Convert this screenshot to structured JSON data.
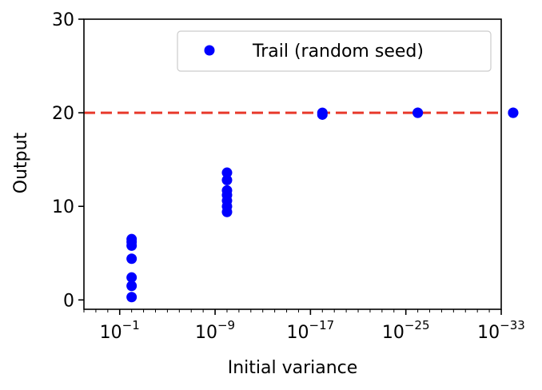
{
  "chart_data": {
    "type": "scatter",
    "xlabel": "Initial variance",
    "ylabel": "Output",
    "x_scale": "log",
    "xlim": [
      100.0,
      1e-33
    ],
    "ylim": [
      -1,
      30
    ],
    "x_ticks": [
      {
        "value": 0.1,
        "base": "10",
        "exp": "−1"
      },
      {
        "value": 1e-09,
        "base": "10",
        "exp": "−9"
      },
      {
        "value": 1e-17,
        "base": "10",
        "exp": "−17"
      },
      {
        "value": 1e-25,
        "base": "10",
        "exp": "−25"
      },
      {
        "value": 1e-33,
        "base": "10",
        "exp": "−33"
      }
    ],
    "y_ticks": [
      0,
      10,
      20,
      30
    ],
    "grid": false,
    "legend_position": "top-right",
    "series": [
      {
        "name": "Trail (random seed)",
        "color": "#0000ff",
        "marker": "circle",
        "points": [
          {
            "x": 0.01,
            "y": 0.3
          },
          {
            "x": 0.01,
            "y": 1.5
          },
          {
            "x": 0.01,
            "y": 2.4
          },
          {
            "x": 0.01,
            "y": 4.4
          },
          {
            "x": 0.01,
            "y": 5.8
          },
          {
            "x": 0.01,
            "y": 6.2
          },
          {
            "x": 0.01,
            "y": 6.5
          },
          {
            "x": 1e-10,
            "y": 9.4
          },
          {
            "x": 1e-10,
            "y": 10.0
          },
          {
            "x": 1e-10,
            "y": 10.6
          },
          {
            "x": 1e-10,
            "y": 11.2
          },
          {
            "x": 1e-10,
            "y": 11.7
          },
          {
            "x": 1e-10,
            "y": 12.8
          },
          {
            "x": 1e-10,
            "y": 13.6
          },
          {
            "x": 1e-18,
            "y": 19.8
          },
          {
            "x": 1e-18,
            "y": 20.0
          },
          {
            "x": 1e-26,
            "y": 20.0
          },
          {
            "x": 1e-26,
            "y": 20.0
          },
          {
            "x": 1e-34,
            "y": 20.0
          },
          {
            "x": 1e-34,
            "y": 20.0
          }
        ]
      }
    ],
    "reference_lines": [
      {
        "orientation": "horizontal",
        "y": 20,
        "color": "#e8392b",
        "style": "dashed"
      }
    ]
  }
}
